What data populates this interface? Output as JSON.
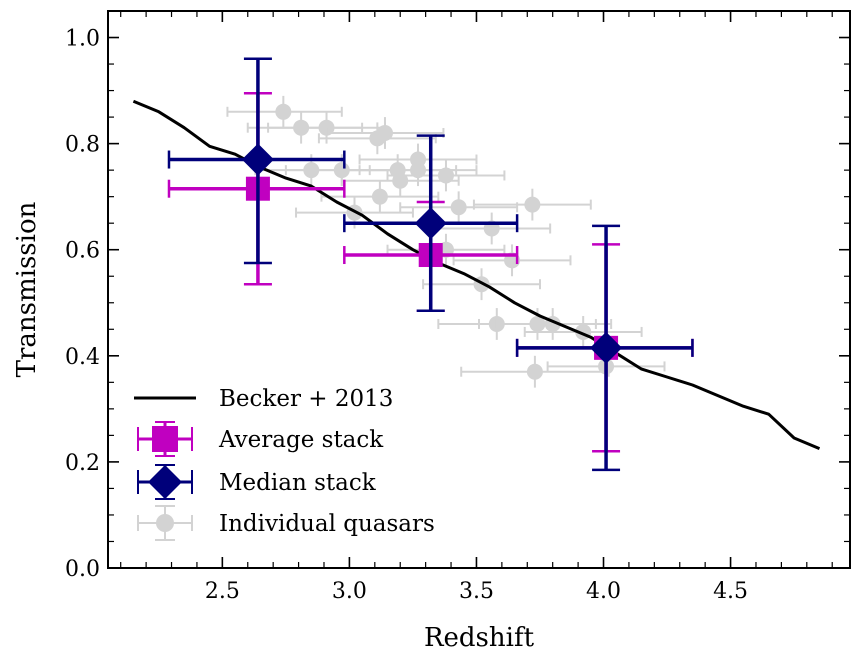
{
  "chart_data": {
    "type": "scatter",
    "xlabel": "Redshift",
    "ylabel": "Transmission",
    "xlim": [
      2.05,
      4.97
    ],
    "ylim": [
      0.0,
      1.05
    ],
    "xticks": [
      2.5,
      3.0,
      3.5,
      4.0,
      4.5
    ],
    "yticks": [
      0.0,
      0.2,
      0.4,
      0.6,
      0.8,
      1.0
    ],
    "xtick_labels": [
      "2.5",
      "3.0",
      "3.5",
      "4.0",
      "4.5"
    ],
    "ytick_labels": [
      "0.0",
      "0.2",
      "0.4",
      "0.6",
      "0.8",
      "1.0"
    ],
    "legend_position": "lower-left",
    "colors": {
      "becker": "#000000",
      "average": "#c000c0",
      "median": "#00007a",
      "individual": "#d3d3d3"
    },
    "series": [
      {
        "name": "Becker + 2013",
        "kind": "line",
        "x": [
          2.15,
          2.25,
          2.35,
          2.45,
          2.55,
          2.65,
          2.75,
          2.85,
          2.95,
          3.05,
          3.15,
          3.25,
          3.35,
          3.45,
          3.55,
          3.65,
          3.75,
          3.85,
          3.95,
          4.05,
          4.15,
          4.25,
          4.35,
          4.45,
          4.55,
          4.65,
          4.75,
          4.85
        ],
        "y": [
          0.88,
          0.86,
          0.83,
          0.795,
          0.78,
          0.755,
          0.735,
          0.72,
          0.69,
          0.665,
          0.63,
          0.6,
          0.575,
          0.555,
          0.53,
          0.5,
          0.475,
          0.455,
          0.435,
          0.405,
          0.375,
          0.36,
          0.345,
          0.325,
          0.305,
          0.29,
          0.245,
          0.225
        ]
      },
      {
        "name": "Average stack",
        "kind": "errorbar",
        "marker": "square",
        "points": [
          {
            "x": 2.64,
            "y": 0.715,
            "xlo": 2.29,
            "xhi": 2.98,
            "ylo": 0.535,
            "yhi": 0.895
          },
          {
            "x": 3.32,
            "y": 0.59,
            "xlo": 2.98,
            "xhi": 3.66,
            "ylo": 0.485,
            "yhi": 0.69
          },
          {
            "x": 4.01,
            "y": 0.415,
            "xlo": 3.66,
            "xhi": 4.35,
            "ylo": 0.22,
            "yhi": 0.61
          }
        ]
      },
      {
        "name": "Median stack",
        "kind": "errorbar",
        "marker": "diamond",
        "points": [
          {
            "x": 2.64,
            "y": 0.77,
            "xlo": 2.29,
            "xhi": 2.98,
            "ylo": 0.575,
            "yhi": 0.96
          },
          {
            "x": 3.32,
            "y": 0.65,
            "xlo": 2.98,
            "xhi": 3.66,
            "ylo": 0.485,
            "yhi": 0.815
          },
          {
            "x": 4.01,
            "y": 0.415,
            "xlo": 3.66,
            "xhi": 4.35,
            "ylo": 0.185,
            "yhi": 0.645
          }
        ]
      },
      {
        "name": "Individual quasars",
        "kind": "errorbar",
        "marker": "circle",
        "points": [
          {
            "x": 2.74,
            "y": 0.86,
            "xlo": 2.52,
            "xhi": 2.97,
            "ylo": 0.83,
            "yhi": 0.89
          },
          {
            "x": 2.81,
            "y": 0.83,
            "xlo": 2.6,
            "xhi": 3.05,
            "ylo": 0.8,
            "yhi": 0.86
          },
          {
            "x": 2.91,
            "y": 0.83,
            "xlo": 2.68,
            "xhi": 3.14,
            "ylo": 0.8,
            "yhi": 0.86
          },
          {
            "x": 2.85,
            "y": 0.75,
            "xlo": 2.63,
            "xhi": 3.08,
            "ylo": 0.72,
            "yhi": 0.78
          },
          {
            "x": 2.97,
            "y": 0.75,
            "xlo": 2.75,
            "xhi": 3.2,
            "ylo": 0.72,
            "yhi": 0.78
          },
          {
            "x": 3.02,
            "y": 0.67,
            "xlo": 2.79,
            "xhi": 3.25,
            "ylo": 0.64,
            "yhi": 0.7
          },
          {
            "x": 3.11,
            "y": 0.81,
            "xlo": 2.88,
            "xhi": 3.34,
            "ylo": 0.78,
            "yhi": 0.84
          },
          {
            "x": 3.14,
            "y": 0.82,
            "xlo": 2.91,
            "xhi": 3.37,
            "ylo": 0.79,
            "yhi": 0.85
          },
          {
            "x": 3.12,
            "y": 0.7,
            "xlo": 2.89,
            "xhi": 3.35,
            "ylo": 0.67,
            "yhi": 0.73
          },
          {
            "x": 3.19,
            "y": 0.75,
            "xlo": 2.96,
            "xhi": 3.42,
            "ylo": 0.72,
            "yhi": 0.78
          },
          {
            "x": 3.2,
            "y": 0.73,
            "xlo": 2.97,
            "xhi": 3.43,
            "ylo": 0.7,
            "yhi": 0.76
          },
          {
            "x": 3.27,
            "y": 0.77,
            "xlo": 3.04,
            "xhi": 3.5,
            "ylo": 0.74,
            "yhi": 0.8
          },
          {
            "x": 3.27,
            "y": 0.75,
            "xlo": 3.04,
            "xhi": 3.5,
            "ylo": 0.72,
            "yhi": 0.78
          },
          {
            "x": 3.38,
            "y": 0.74,
            "xlo": 3.15,
            "xhi": 3.61,
            "ylo": 0.71,
            "yhi": 0.77
          },
          {
            "x": 3.43,
            "y": 0.68,
            "xlo": 3.2,
            "xhi": 3.66,
            "ylo": 0.65,
            "yhi": 0.71
          },
          {
            "x": 3.38,
            "y": 0.6,
            "xlo": 3.15,
            "xhi": 3.61,
            "ylo": 0.57,
            "yhi": 0.63
          },
          {
            "x": 3.56,
            "y": 0.64,
            "xlo": 3.33,
            "xhi": 3.79,
            "ylo": 0.61,
            "yhi": 0.67
          },
          {
            "x": 3.72,
            "y": 0.685,
            "xlo": 3.49,
            "xhi": 3.95,
            "ylo": 0.655,
            "yhi": 0.715
          },
          {
            "x": 3.64,
            "y": 0.58,
            "xlo": 3.41,
            "xhi": 3.87,
            "ylo": 0.55,
            "yhi": 0.61
          },
          {
            "x": 3.52,
            "y": 0.535,
            "xlo": 3.29,
            "xhi": 3.75,
            "ylo": 0.505,
            "yhi": 0.565
          },
          {
            "x": 3.58,
            "y": 0.46,
            "xlo": 3.35,
            "xhi": 3.81,
            "ylo": 0.43,
            "yhi": 0.49
          },
          {
            "x": 3.74,
            "y": 0.46,
            "xlo": 3.51,
            "xhi": 3.97,
            "ylo": 0.43,
            "yhi": 0.49
          },
          {
            "x": 3.8,
            "y": 0.46,
            "xlo": 3.57,
            "xhi": 4.03,
            "ylo": 0.43,
            "yhi": 0.49
          },
          {
            "x": 3.92,
            "y": 0.445,
            "xlo": 3.69,
            "xhi": 4.15,
            "ylo": 0.415,
            "yhi": 0.475
          },
          {
            "x": 4.01,
            "y": 0.38,
            "xlo": 3.78,
            "xhi": 4.24,
            "ylo": 0.35,
            "yhi": 0.41
          },
          {
            "x": 3.73,
            "y": 0.37,
            "xlo": 3.44,
            "xhi": 4.02,
            "ylo": 0.34,
            "yhi": 0.4
          }
        ]
      }
    ]
  }
}
